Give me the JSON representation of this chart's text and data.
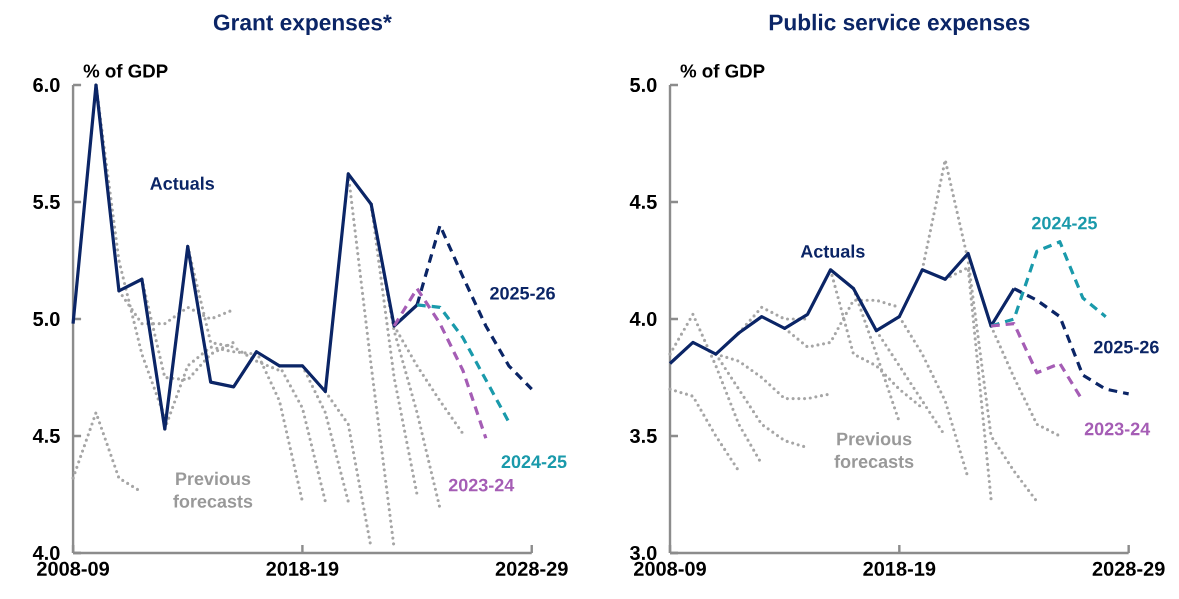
{
  "chart_data": [
    {
      "type": "line",
      "title": "Grant expenses*",
      "ylabel": "% of GDP",
      "categories": [
        "2008-09",
        null,
        null,
        null,
        null,
        null,
        null,
        null,
        null,
        null,
        "2018-19",
        null,
        null,
        null,
        null,
        null,
        null,
        null,
        null,
        null,
        "2028-29"
      ],
      "ylim": [
        4.0,
        6.0
      ],
      "yticks": [
        {
          "value": 4.0,
          "label": "4.0"
        },
        4.5,
        {
          "value": 5.0,
          "label": "5.0"
        },
        5.5,
        {
          "value": 6.0,
          "label": "6.0"
        }
      ],
      "annotations": [
        "Previous forecasts"
      ],
      "series": [
        {
          "name": "Actuals",
          "color": "#0b2566",
          "line_style": "solid",
          "values": [
            4.98,
            6.0,
            5.12,
            5.17,
            4.53,
            5.31,
            4.73,
            4.71,
            4.86,
            4.8,
            4.8,
            4.69,
            5.62,
            5.49,
            4.97,
            5.06,
            null,
            null,
            null,
            null,
            null
          ]
        },
        {
          "name": "2025-26",
          "color": "#0b2566",
          "line_style": "dashed",
          "values": [
            null,
            null,
            null,
            null,
            null,
            null,
            null,
            null,
            null,
            null,
            null,
            null,
            null,
            null,
            null,
            5.06,
            5.4,
            5.18,
            4.97,
            4.8,
            4.7
          ]
        },
        {
          "name": "2024-25",
          "color": "#1a9aab",
          "line_style": "dashed",
          "values": [
            null,
            null,
            null,
            null,
            null,
            null,
            null,
            null,
            null,
            null,
            null,
            null,
            null,
            null,
            null,
            5.06,
            5.05,
            4.92,
            4.74,
            4.56,
            null
          ]
        },
        {
          "name": "2023-24",
          "color": "#a55db5",
          "line_style": "dashed",
          "values": [
            null,
            null,
            null,
            null,
            null,
            null,
            null,
            null,
            null,
            null,
            null,
            null,
            null,
            null,
            4.97,
            5.13,
            4.98,
            4.78,
            4.49,
            null,
            null
          ]
        },
        {
          "color": "#a6a6a6",
          "line_style": "dotted",
          "values": [
            4.32,
            4.6,
            4.32,
            4.26,
            null,
            null,
            null,
            null,
            null,
            null,
            null,
            null,
            null,
            null,
            null,
            null,
            null,
            null,
            null,
            null,
            null
          ]
        },
        {
          "color": "#a6a6a6",
          "line_style": "dotted",
          "values": [
            null,
            6.0,
            5.25,
            4.85,
            4.58,
            null,
            null,
            null,
            null,
            null,
            null,
            null,
            null,
            null,
            null,
            null,
            null,
            null,
            null,
            null,
            null
          ]
        },
        {
          "color": "#a6a6a6",
          "line_style": "dotted",
          "values": [
            null,
            null,
            5.12,
            4.98,
            4.98,
            5.05,
            5.0,
            5.04,
            null,
            null,
            null,
            null,
            null,
            null,
            null,
            null,
            null,
            null,
            null,
            null,
            null
          ]
        },
        {
          "color": "#a6a6a6",
          "line_style": "dotted",
          "values": [
            null,
            null,
            null,
            5.17,
            4.75,
            4.74,
            4.85,
            4.9,
            null,
            null,
            null,
            null,
            null,
            null,
            null,
            null,
            null,
            null,
            null,
            null,
            null
          ]
        },
        {
          "color": "#a6a6a6",
          "line_style": "dotted",
          "values": [
            null,
            null,
            null,
            null,
            4.53,
            4.8,
            4.88,
            4.86,
            4.85,
            null,
            null,
            null,
            null,
            null,
            null,
            null,
            null,
            null,
            null,
            null,
            null
          ]
        },
        {
          "color": "#a6a6a6",
          "line_style": "dotted",
          "values": [
            null,
            null,
            null,
            null,
            null,
            5.31,
            4.9,
            4.88,
            4.82,
            4.78,
            null,
            null,
            null,
            null,
            null,
            null,
            null,
            null,
            null,
            null,
            null
          ]
        },
        {
          "color": "#a6a6a6",
          "line_style": "dotted",
          "values": [
            null,
            null,
            null,
            null,
            null,
            null,
            null,
            null,
            4.86,
            4.65,
            4.22,
            null,
            null,
            null,
            null,
            null,
            null,
            null,
            null,
            null,
            null
          ]
        },
        {
          "color": "#a6a6a6",
          "line_style": "dotted",
          "values": [
            null,
            null,
            null,
            null,
            null,
            null,
            null,
            null,
            null,
            4.8,
            4.62,
            4.22,
            null,
            null,
            null,
            null,
            null,
            null,
            null,
            null,
            null
          ]
        },
        {
          "color": "#a6a6a6",
          "line_style": "dotted",
          "values": [
            null,
            null,
            null,
            null,
            null,
            null,
            null,
            null,
            null,
            null,
            4.8,
            4.6,
            4.22,
            null,
            null,
            null,
            null,
            null,
            null,
            null,
            null
          ]
        },
        {
          "color": "#a6a6a6",
          "line_style": "dotted",
          "values": [
            null,
            null,
            null,
            null,
            null,
            null,
            null,
            null,
            null,
            null,
            null,
            4.69,
            4.55,
            4.02,
            null,
            null,
            null,
            null,
            null,
            null,
            null
          ]
        },
        {
          "color": "#a6a6a6",
          "line_style": "dotted",
          "values": [
            null,
            null,
            null,
            null,
            null,
            null,
            null,
            null,
            null,
            null,
            null,
            null,
            5.62,
            4.8,
            4.02,
            null,
            null,
            null,
            null,
            null,
            null
          ]
        },
        {
          "color": "#a6a6a6",
          "line_style": "dotted",
          "values": [
            null,
            null,
            null,
            null,
            null,
            null,
            null,
            null,
            null,
            null,
            null,
            null,
            null,
            5.49,
            4.75,
            4.25,
            null,
            null,
            null,
            null,
            null
          ]
        },
        {
          "color": "#a6a6a6",
          "line_style": "dotted",
          "values": [
            null,
            null,
            null,
            null,
            null,
            null,
            null,
            null,
            null,
            null,
            null,
            null,
            null,
            5.49,
            4.95,
            4.6,
            4.19,
            null,
            null,
            null,
            null
          ]
        },
        {
          "color": "#a6a6a6",
          "line_style": "dotted",
          "values": [
            null,
            null,
            null,
            null,
            null,
            null,
            null,
            null,
            null,
            null,
            null,
            null,
            null,
            null,
            4.97,
            4.8,
            4.65,
            4.51,
            null,
            null,
            null
          ]
        }
      ]
    },
    {
      "type": "line",
      "title": "Public service expenses",
      "ylabel": "% of GDP",
      "categories": [
        "2008-09",
        null,
        null,
        null,
        null,
        null,
        null,
        null,
        null,
        null,
        "2018-19",
        null,
        null,
        null,
        null,
        null,
        null,
        null,
        null,
        null,
        "2028-29"
      ],
      "ylim": [
        3.0,
        5.0
      ],
      "yticks": [
        {
          "value": 3.0,
          "label": "3.0"
        },
        3.5,
        {
          "value": 4.0,
          "label": "4.0"
        },
        4.5,
        {
          "value": 5.0,
          "label": "5.0"
        }
      ],
      "annotations": [
        "Previous forecasts"
      ],
      "series": [
        {
          "name": "Actuals",
          "color": "#0b2566",
          "line_style": "solid",
          "values": [
            3.81,
            3.9,
            3.85,
            3.94,
            4.01,
            3.96,
            4.02,
            4.21,
            4.13,
            3.95,
            4.01,
            4.21,
            4.17,
            4.28,
            3.97,
            4.13,
            null,
            null,
            null,
            null,
            null
          ]
        },
        {
          "name": "2025-26",
          "color": "#0b2566",
          "line_style": "dashed",
          "values": [
            null,
            null,
            null,
            null,
            null,
            null,
            null,
            null,
            null,
            null,
            null,
            null,
            null,
            null,
            null,
            4.13,
            4.08,
            4.01,
            3.76,
            3.7,
            3.68
          ]
        },
        {
          "name": "2024-25",
          "color": "#1a9aab",
          "line_style": "dashed",
          "values": [
            null,
            null,
            null,
            null,
            null,
            null,
            null,
            null,
            null,
            null,
            null,
            null,
            null,
            null,
            3.97,
            4.0,
            4.29,
            4.33,
            4.09,
            4.01,
            null
          ]
        },
        {
          "name": "2023-24",
          "color": "#a55db5",
          "line_style": "dashed",
          "values": [
            null,
            null,
            null,
            null,
            null,
            null,
            null,
            null,
            null,
            null,
            null,
            null,
            null,
            null,
            3.97,
            3.98,
            3.77,
            3.81,
            3.65,
            null,
            null
          ]
        },
        {
          "color": "#a6a6a6",
          "line_style": "dotted",
          "values": [
            3.7,
            3.67,
            3.5,
            3.35,
            null,
            null,
            null,
            null,
            null,
            null,
            null,
            null,
            null,
            null,
            null,
            null,
            null,
            null,
            null,
            null,
            null
          ]
        },
        {
          "color": "#a6a6a6",
          "line_style": "dotted",
          "values": [
            3.85,
            4.02,
            3.8,
            3.55,
            3.38,
            null,
            null,
            null,
            null,
            null,
            null,
            null,
            null,
            null,
            null,
            null,
            null,
            null,
            null,
            null,
            null
          ]
        },
        {
          "color": "#a6a6a6",
          "line_style": "dotted",
          "values": [
            null,
            null,
            3.85,
            3.7,
            3.55,
            3.48,
            3.45,
            null,
            null,
            null,
            null,
            null,
            null,
            null,
            null,
            null,
            null,
            null,
            null,
            null,
            null
          ]
        },
        {
          "color": "#a6a6a6",
          "line_style": "dotted",
          "values": [
            null,
            null,
            3.85,
            3.82,
            3.75,
            3.66,
            3.66,
            3.68,
            null,
            null,
            null,
            null,
            null,
            null,
            null,
            null,
            null,
            null,
            null,
            null,
            null
          ]
        },
        {
          "color": "#a6a6a6",
          "line_style": "dotted",
          "values": [
            null,
            null,
            null,
            3.94,
            4.05,
            4.0,
            4.0,
            null,
            null,
            null,
            null,
            null,
            null,
            null,
            null,
            null,
            null,
            null,
            null,
            null,
            null
          ]
        },
        {
          "color": "#a6a6a6",
          "line_style": "dotted",
          "values": [
            null,
            null,
            null,
            null,
            null,
            3.96,
            3.88,
            3.9,
            4.08,
            4.08,
            4.05,
            null,
            null,
            null,
            null,
            null,
            null,
            null,
            null,
            null,
            null
          ]
        },
        {
          "color": "#a6a6a6",
          "line_style": "dotted",
          "values": [
            null,
            null,
            null,
            null,
            null,
            null,
            null,
            4.21,
            3.85,
            3.8,
            3.7,
            3.62,
            null,
            null,
            null,
            null,
            null,
            null,
            null,
            null,
            null
          ]
        },
        {
          "color": "#a6a6a6",
          "line_style": "dotted",
          "values": [
            null,
            null,
            null,
            null,
            null,
            null,
            null,
            null,
            4.13,
            3.85,
            3.56,
            null,
            null,
            null,
            null,
            null,
            null,
            null,
            null,
            null,
            null
          ]
        },
        {
          "color": "#a6a6a6",
          "line_style": "dotted",
          "values": [
            null,
            null,
            null,
            null,
            null,
            null,
            null,
            null,
            null,
            3.95,
            3.8,
            3.65,
            3.5,
            null,
            null,
            null,
            null,
            null,
            null,
            null,
            null
          ]
        },
        {
          "color": "#a6a6a6",
          "line_style": "dotted",
          "values": [
            null,
            null,
            null,
            null,
            null,
            null,
            null,
            null,
            null,
            null,
            4.01,
            3.85,
            3.65,
            3.32,
            null,
            null,
            null,
            null,
            null,
            null,
            null
          ]
        },
        {
          "color": "#a6a6a6",
          "line_style": "dotted",
          "values": [
            null,
            null,
            null,
            null,
            null,
            null,
            null,
            null,
            null,
            null,
            null,
            4.21,
            4.68,
            4.25,
            3.5,
            3.35,
            3.22,
            null,
            null,
            null,
            null
          ]
        },
        {
          "color": "#a6a6a6",
          "line_style": "dotted",
          "values": [
            null,
            null,
            null,
            null,
            null,
            null,
            null,
            null,
            null,
            null,
            null,
            null,
            4.17,
            4.22,
            3.23,
            null,
            null,
            null,
            null,
            null,
            null
          ]
        },
        {
          "color": "#a6a6a6",
          "line_style": "dotted",
          "values": [
            null,
            null,
            null,
            null,
            null,
            null,
            null,
            null,
            null,
            null,
            null,
            null,
            null,
            null,
            3.97,
            3.75,
            3.55,
            3.5,
            null,
            null,
            null
          ]
        }
      ]
    }
  ]
}
